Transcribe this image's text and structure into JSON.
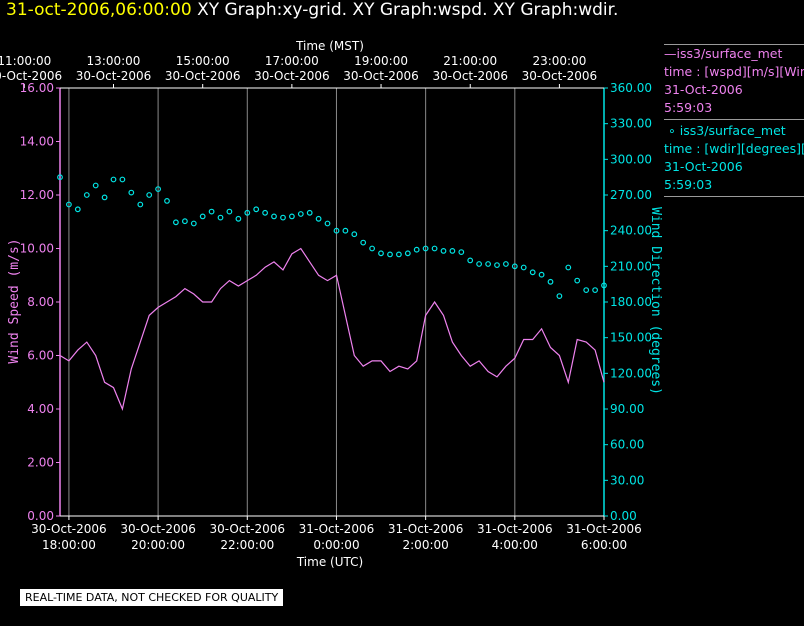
{
  "header": {
    "date_label": "31-oct-2006,06:00:00",
    "graph_titles": "XY Graph:xy-grid.  XY Graph:wspd.  XY Graph:wdir."
  },
  "legend": {
    "wspd": {
      "line1": "iss3/surface_met",
      "line2": "time : [wspd][m/s][Win",
      "line3": "31-Oct-2006",
      "line4": "5:59:03",
      "color": "#ee82ee"
    },
    "wdir": {
      "line1": "iss3/surface_met",
      "line2": "time : [wdir][degrees][W",
      "line3": "31-Oct-2006",
      "line4": "5:59:03",
      "color": "#00e5e5"
    }
  },
  "disclaimer": "REAL-TIME DATA, NOT CHECKED FOR QUALITY",
  "chart_data": {
    "type": "line",
    "top_axis_label": "Time (MST)",
    "bottom_axis_label": "Time (UTC)",
    "left_axis_label": "Wind Speed (m/s)",
    "right_axis_label": "Wind Direction (degrees)",
    "x_range_hours_utc": [
      -6.2,
      6.0
    ],
    "top_ticks": [
      {
        "t": -7,
        "time": "11:00:00",
        "date": "30-Oct-2006"
      },
      {
        "t": -5,
        "time": "13:00:00",
        "date": "30-Oct-2006"
      },
      {
        "t": -3,
        "time": "15:00:00",
        "date": "30-Oct-2006"
      },
      {
        "t": -1,
        "time": "17:00:00",
        "date": "30-Oct-2006"
      },
      {
        "t": 1,
        "time": "19:00:00",
        "date": "30-Oct-2006"
      },
      {
        "t": 3,
        "time": "21:00:00",
        "date": "30-Oct-2006"
      },
      {
        "t": 5,
        "time": "23:00:00",
        "date": "30-Oct-2006"
      }
    ],
    "bottom_ticks": [
      {
        "t": -6,
        "date": "30-Oct-2006",
        "time": "18:00:00"
      },
      {
        "t": -4,
        "date": "30-Oct-2006",
        "time": "20:00:00"
      },
      {
        "t": -2,
        "date": "30-Oct-2006",
        "time": "22:00:00"
      },
      {
        "t": 0,
        "date": "31-Oct-2006",
        "time": "0:00:00"
      },
      {
        "t": 2,
        "date": "31-Oct-2006",
        "time": "2:00:00"
      },
      {
        "t": 4,
        "date": "31-Oct-2006",
        "time": "4:00:00"
      },
      {
        "t": 6,
        "date": "31-Oct-2006",
        "time": "6:00:00"
      }
    ],
    "left_ticks": [
      "0.00",
      "2.00",
      "4.00",
      "6.00",
      "8.00",
      "10.00",
      "12.00",
      "14.00",
      "16.00"
    ],
    "right_ticks": [
      "0.00",
      "30.00",
      "60.00",
      "90.00",
      "120.00",
      "150.00",
      "180.00",
      "210.00",
      "240.00",
      "270.00",
      "300.00",
      "330.00",
      "360.00"
    ],
    "ylim_left": [
      0,
      16
    ],
    "ylim_right": [
      0,
      360
    ],
    "grid": true,
    "series": [
      {
        "name": "iss3/surface_met time : [wspd][m/s]",
        "axis": "left",
        "style": "line",
        "color": "#ee82ee",
        "x": [
          -6.2,
          -6.0,
          -5.8,
          -5.6,
          -5.4,
          -5.2,
          -5.0,
          -4.8,
          -4.6,
          -4.4,
          -4.2,
          -4.0,
          -3.8,
          -3.6,
          -3.4,
          -3.2,
          -3.0,
          -2.8,
          -2.6,
          -2.4,
          -2.2,
          -2.0,
          -1.8,
          -1.6,
          -1.4,
          -1.2,
          -1.0,
          -0.8,
          -0.6,
          -0.4,
          -0.2,
          0.0,
          0.2,
          0.4,
          0.6,
          0.8,
          1.0,
          1.2,
          1.4,
          1.6,
          1.8,
          2.0,
          2.2,
          2.4,
          2.6,
          2.8,
          3.0,
          3.2,
          3.4,
          3.6,
          3.8,
          4.0,
          4.2,
          4.4,
          4.6,
          4.8,
          5.0,
          5.2,
          5.4,
          5.6,
          5.8,
          6.0
        ],
        "y": [
          6.0,
          5.8,
          6.2,
          6.5,
          6.0,
          5.0,
          4.8,
          4.0,
          5.5,
          6.5,
          7.5,
          7.8,
          8.0,
          8.2,
          8.5,
          8.3,
          8.0,
          8.0,
          8.5,
          8.8,
          8.6,
          8.8,
          9.0,
          9.3,
          9.5,
          9.2,
          9.8,
          10.0,
          9.5,
          9.0,
          8.8,
          9.0,
          7.5,
          6.0,
          5.6,
          5.8,
          5.8,
          5.4,
          5.6,
          5.5,
          5.8,
          7.5,
          8.0,
          7.5,
          6.5,
          6.0,
          5.6,
          5.8,
          5.4,
          5.2,
          5.6,
          5.9,
          6.6,
          6.6,
          7.0,
          6.3,
          6.0,
          5.0,
          6.6,
          6.5,
          6.2,
          5.0
        ]
      },
      {
        "name": "iss3/surface_met time : [wdir][degrees]",
        "axis": "right",
        "style": "scatter",
        "color": "#00e5e5",
        "x": [
          -6.2,
          -6.0,
          -5.8,
          -5.6,
          -5.4,
          -5.2,
          -5.0,
          -4.8,
          -4.6,
          -4.4,
          -4.2,
          -4.0,
          -3.8,
          -3.6,
          -3.4,
          -3.2,
          -3.0,
          -2.8,
          -2.6,
          -2.4,
          -2.2,
          -2.0,
          -1.8,
          -1.6,
          -1.4,
          -1.2,
          -1.0,
          -0.8,
          -0.6,
          -0.4,
          -0.2,
          0.0,
          0.2,
          0.4,
          0.6,
          0.8,
          1.0,
          1.2,
          1.4,
          1.6,
          1.8,
          2.0,
          2.2,
          2.4,
          2.6,
          2.8,
          3.0,
          3.2,
          3.4,
          3.6,
          3.8,
          4.0,
          4.2,
          4.4,
          4.6,
          4.8,
          5.0,
          5.2,
          5.4,
          5.6,
          5.8,
          6.0
        ],
        "y": [
          285,
          262,
          258,
          270,
          278,
          268,
          283,
          283,
          272,
          262,
          270,
          275,
          265,
          247,
          248,
          246,
          252,
          256,
          251,
          256,
          250,
          255,
          258,
          255,
          252,
          251,
          252,
          254,
          255,
          250,
          246,
          240,
          240,
          237,
          230,
          225,
          221,
          220,
          220,
          221,
          224,
          225,
          225,
          223,
          223,
          222,
          215,
          212,
          212,
          211,
          212,
          210,
          209,
          205,
          203,
          197,
          185,
          209,
          198,
          190,
          190,
          194
        ]
      }
    ]
  }
}
